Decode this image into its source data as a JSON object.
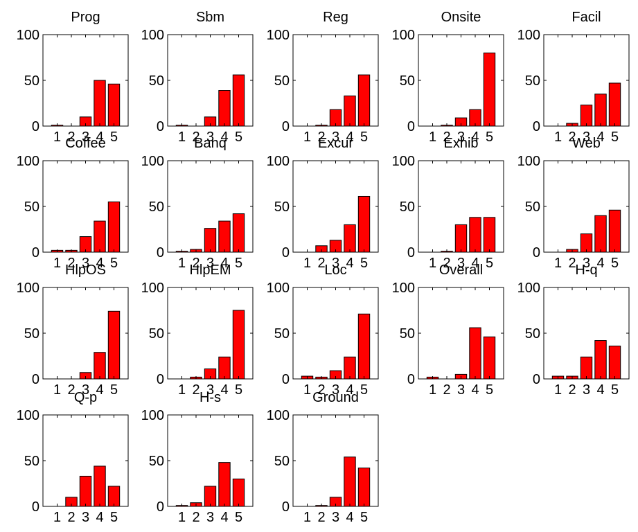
{
  "figure": {
    "bar_color": "#ff0000",
    "edge_color": "#000000",
    "background": "#ffffff"
  },
  "chart_data": [
    {
      "type": "bar",
      "title": "Prog",
      "categories": [
        "1",
        "2",
        "3",
        "4",
        "5"
      ],
      "values": [
        1,
        0,
        10,
        50,
        46
      ],
      "ylim": [
        0,
        100
      ],
      "yticks": [
        "0",
        "50",
        "100"
      ],
      "grid": false
    },
    {
      "type": "bar",
      "title": "Sbm",
      "categories": [
        "1",
        "2",
        "3",
        "4",
        "5"
      ],
      "values": [
        1,
        0,
        10,
        39,
        56
      ],
      "ylim": [
        0,
        100
      ],
      "yticks": [
        "0",
        "50",
        "100"
      ],
      "grid": false
    },
    {
      "type": "bar",
      "title": "Reg",
      "categories": [
        "1",
        "2",
        "3",
        "4",
        "5"
      ],
      "values": [
        0,
        1,
        18,
        33,
        56
      ],
      "ylim": [
        0,
        100
      ],
      "yticks": [
        "0",
        "50",
        "100"
      ],
      "grid": false
    },
    {
      "type": "bar",
      "title": "Onsite",
      "categories": [
        "1",
        "2",
        "3",
        "4",
        "5"
      ],
      "values": [
        0,
        1,
        9,
        18,
        80
      ],
      "ylim": [
        0,
        100
      ],
      "yticks": [
        "0",
        "50",
        "100"
      ],
      "grid": false
    },
    {
      "type": "bar",
      "title": "Facil",
      "categories": [
        "1",
        "2",
        "3",
        "4",
        "5"
      ],
      "values": [
        0,
        3,
        23,
        35,
        47
      ],
      "ylim": [
        0,
        100
      ],
      "yticks": [
        "0",
        "50",
        "100"
      ],
      "grid": false
    },
    {
      "type": "bar",
      "title": "Coffee",
      "categories": [
        "1",
        "2",
        "3",
        "4",
        "5"
      ],
      "values": [
        2,
        2,
        17,
        34,
        55
      ],
      "ylim": [
        0,
        100
      ],
      "yticks": [
        "0",
        "50",
        "100"
      ],
      "grid": false
    },
    {
      "type": "bar",
      "title": "Banq",
      "categories": [
        "1",
        "2",
        "3",
        "4",
        "5"
      ],
      "values": [
        1,
        3,
        26,
        34,
        42
      ],
      "ylim": [
        0,
        100
      ],
      "yticks": [
        "0",
        "50",
        "100"
      ],
      "grid": false
    },
    {
      "type": "bar",
      "title": "Excur",
      "categories": [
        "1",
        "2",
        "3",
        "4",
        "5"
      ],
      "values": [
        0,
        7,
        13,
        30,
        61
      ],
      "ylim": [
        0,
        100
      ],
      "yticks": [
        "0",
        "50",
        "100"
      ],
      "grid": false
    },
    {
      "type": "bar",
      "title": "Exhib",
      "categories": [
        "1",
        "2",
        "3",
        "4",
        "5"
      ],
      "values": [
        0,
        1,
        30,
        38,
        38
      ],
      "ylim": [
        0,
        100
      ],
      "yticks": [
        "0",
        "50",
        "100"
      ],
      "grid": false
    },
    {
      "type": "bar",
      "title": "Web",
      "categories": [
        "1",
        "2",
        "3",
        "4",
        "5"
      ],
      "values": [
        0,
        3,
        20,
        40,
        46
      ],
      "ylim": [
        0,
        100
      ],
      "yticks": [
        "0",
        "50",
        "100"
      ],
      "grid": false
    },
    {
      "type": "bar",
      "title": "HlpOS",
      "categories": [
        "1",
        "2",
        "3",
        "4",
        "5"
      ],
      "values": [
        0,
        0,
        7,
        29,
        74
      ],
      "ylim": [
        0,
        100
      ],
      "yticks": [
        "0",
        "50",
        "100"
      ],
      "grid": false
    },
    {
      "type": "bar",
      "title": "HlpEM",
      "categories": [
        "1",
        "2",
        "3",
        "4",
        "5"
      ],
      "values": [
        0,
        2,
        11,
        24,
        75
      ],
      "ylim": [
        0,
        100
      ],
      "yticks": [
        "0",
        "50",
        "100"
      ],
      "grid": false
    },
    {
      "type": "bar",
      "title": "Loc",
      "categories": [
        "1",
        "2",
        "3",
        "4",
        "5"
      ],
      "values": [
        3,
        2,
        9,
        24,
        71
      ],
      "ylim": [
        0,
        100
      ],
      "yticks": [
        "0",
        "50",
        "100"
      ],
      "grid": false
    },
    {
      "type": "bar",
      "title": "Overall",
      "categories": [
        "1",
        "2",
        "3",
        "4",
        "5"
      ],
      "values": [
        2,
        0,
        5,
        56,
        46
      ],
      "ylim": [
        0,
        100
      ],
      "yticks": [
        "0",
        "50",
        "100"
      ],
      "grid": false
    },
    {
      "type": "bar",
      "title": "H-q",
      "categories": [
        "1",
        "2",
        "3",
        "4",
        "5"
      ],
      "values": [
        3,
        3,
        24,
        42,
        36
      ],
      "ylim": [
        0,
        100
      ],
      "yticks": [
        "0",
        "50",
        "100"
      ],
      "grid": false
    },
    {
      "type": "bar",
      "title": "Q-p",
      "categories": [
        "1",
        "2",
        "3",
        "4",
        "5"
      ],
      "values": [
        0,
        10,
        33,
        44,
        22
      ],
      "ylim": [
        0,
        100
      ],
      "yticks": [
        "0",
        "50",
        "100"
      ],
      "grid": false
    },
    {
      "type": "bar",
      "title": "H-s",
      "categories": [
        "1",
        "2",
        "3",
        "4",
        "5"
      ],
      "values": [
        1,
        4,
        22,
        48,
        30
      ],
      "ylim": [
        0,
        100
      ],
      "yticks": [
        "0",
        "50",
        "100"
      ],
      "grid": false
    },
    {
      "type": "bar",
      "title": "Ground",
      "categories": [
        "1",
        "2",
        "3",
        "4",
        "5"
      ],
      "values": [
        0,
        1,
        10,
        54,
        42
      ],
      "ylim": [
        0,
        100
      ],
      "yticks": [
        "0",
        "50",
        "100"
      ],
      "grid": false
    }
  ]
}
